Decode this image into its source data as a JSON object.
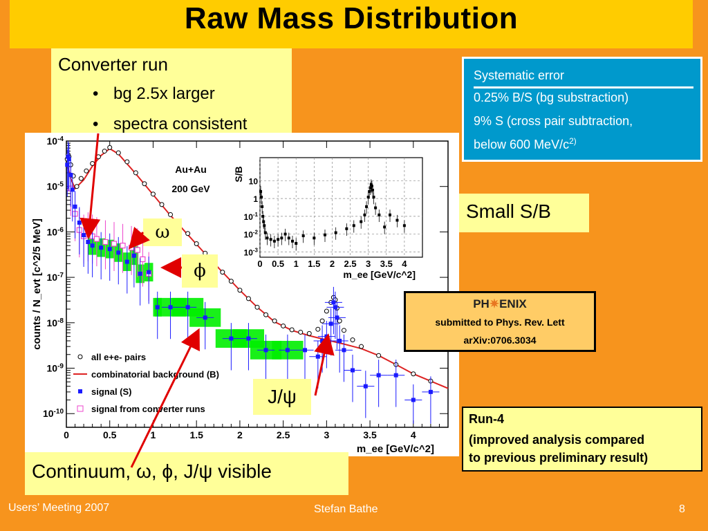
{
  "slide": {
    "title": "Raw Mass Distribution",
    "converter": {
      "title": "Converter run",
      "bullets": [
        "bg 2.5x larger",
        "spectra consistent"
      ]
    },
    "systematic": {
      "heading": "Systematic error",
      "line1": "0.25% B/S (bg substraction)",
      "line2": "9% S (cross pair subtraction,",
      "line3": "below 600 MeV/c",
      "line3_sup": "2)"
    },
    "small_sb": "Small S/B",
    "omega_label": "ω",
    "phi_label": "ϕ",
    "jpsi_label": "J/ψ",
    "phenix": {
      "logo_left": "PH",
      "logo_right": "ENIX",
      "line1": "submitted to Phys. Rev. Lett",
      "line2": "arXiv:0706.3034"
    },
    "run4": {
      "line1": "Run-4",
      "line2": "(improved analysis compared",
      "line3": "to previous preliminary result)"
    },
    "continuum": "Continuum, ω, ϕ, J/ψ visible",
    "footer": {
      "left": "Users’ Meeting 2007",
      "center": "Stefan Bathe",
      "page": "8"
    },
    "colors": {
      "background": "#f7941d",
      "title_bar": "#ffcc00",
      "box": "#ffff99",
      "sys_box": "#0099cc",
      "arrow": "#e00000",
      "signal": "#1a1aff",
      "bg_curve": "#dd2222",
      "sys_band": "#00ee00",
      "converter": "#ee44cc"
    }
  },
  "chart_data": [
    {
      "type": "scatter",
      "log_y": true,
      "xlabel": "m_ee [GeV/c^2]",
      "ylabel": "counts / N_evt [c^2/5 MeV]",
      "xlim": [
        0,
        4.4
      ],
      "ylim": [
        5e-11,
        0.0001
      ],
      "x_ticks": [
        "0",
        "0.5",
        "1",
        "1.5",
        "2",
        "2.5",
        "3",
        "3.5",
        "4"
      ],
      "y_ticks": [
        "10^-10",
        "10^-9",
        "10^-8",
        "10^-7",
        "10^-6",
        "10^-5",
        "10^-4"
      ],
      "annotation": [
        "Au+Au",
        "200 GeV"
      ],
      "legend": [
        "all e+e- pairs",
        "combinatorial background (B)",
        "signal (S)",
        "signal from converter runs"
      ],
      "legend_position": "bottom-left",
      "all_pairs": {
        "x": [
          0.01,
          0.02,
          0.03,
          0.05,
          0.08,
          0.12,
          0.17,
          0.23,
          0.3,
          0.37,
          0.44,
          0.5,
          0.6,
          0.7,
          0.8,
          0.9,
          1.0,
          1.1,
          1.2,
          1.3,
          1.4,
          1.5,
          1.6,
          1.7,
          1.8,
          1.9,
          2.0,
          2.1,
          2.2,
          2.3,
          2.4,
          2.5,
          2.6,
          2.7,
          2.8,
          2.9,
          2.95,
          3.0,
          3.05,
          3.08,
          3.1,
          3.12,
          3.15,
          3.2,
          3.3,
          3.4,
          3.6,
          3.8,
          4.0,
          4.2
        ],
        "y": [
          4e-05,
          5e-05,
          4.5e-05,
          3e-05,
          1.7e-05,
          1e-05,
          1.5e-05,
          2.2e-05,
          3.2e-05,
          4.5e-05,
          6e-05,
          7.2e-05,
          5.5e-05,
          3.5e-05,
          2e-05,
          1.15e-05,
          6.8e-06,
          4e-06,
          2.4e-06,
          1.5e-06,
          9.2e-07,
          5.5e-07,
          3.4e-07,
          2.1e-07,
          1.3e-07,
          8.2e-08,
          5.2e-08,
          3.4e-08,
          2.2e-08,
          1.5e-08,
          1.1e-08,
          8.5e-09,
          7e-09,
          6.2e-09,
          5.8e-09,
          7.2e-09,
          1.1e-08,
          1.8e-08,
          2.8e-08,
          3.6e-08,
          3.2e-08,
          2.1e-08,
          1.1e-08,
          6.8e-09,
          4.2e-09,
          3e-09,
          1.9e-09,
          1.2e-09,
          7.5e-10,
          5.2e-10
        ]
      },
      "background": {
        "x": [
          0.01,
          0.05,
          0.1,
          0.2,
          0.3,
          0.4,
          0.5,
          0.6,
          0.8,
          1.0,
          1.2,
          1.4,
          1.6,
          1.8,
          2.0,
          2.2,
          2.4,
          2.6,
          2.8,
          3.0,
          3.2,
          3.4,
          3.6,
          3.8,
          4.0,
          4.2,
          4.4
        ],
        "y": [
          3e-05,
          1.5e-05,
          9e-06,
          1.4e-05,
          2.8e-05,
          4.8e-05,
          6.8e-05,
          5.2e-05,
          1.9e-05,
          6.6e-06,
          2.3e-06,
          8.7e-07,
          3.3e-07,
          1.3e-07,
          5.2e-08,
          2.2e-08,
          1.05e-08,
          6.8e-09,
          5.2e-09,
          4.2e-09,
          3.4e-09,
          2.7e-09,
          1.9e-09,
          1.2e-09,
          7.5e-10,
          5.2e-10,
          3.6e-10
        ]
      },
      "signal": {
        "x": [
          0.01,
          0.02,
          0.03,
          0.05,
          0.07,
          0.1,
          0.15,
          0.2,
          0.25,
          0.3,
          0.4,
          0.5,
          0.6,
          0.7,
          0.78,
          0.85,
          0.95,
          1.05,
          1.2,
          1.4,
          1.6,
          1.9,
          2.1,
          2.3,
          2.55,
          2.75,
          2.9,
          2.95,
          3.0,
          3.05,
          3.08,
          3.1,
          3.12,
          3.15,
          3.2,
          3.3,
          3.45,
          3.6,
          3.8,
          4.0,
          4.2
        ],
        "y": [
          3e-05,
          4.5e-05,
          4e-05,
          1.8e-05,
          8.5e-06,
          3.6e-06,
          1.6e-06,
          8.5e-07,
          6e-07,
          5e-07,
          4.5e-07,
          4.2e-07,
          3.5e-07,
          2.2e-07,
          3e-07,
          1.2e-07,
          1.3e-07,
          2.2e-08,
          2.2e-08,
          2.2e-08,
          1.3e-08,
          4.5e-09,
          4.5e-09,
          2.5e-09,
          2.5e-09,
          2.5e-09,
          1.8e-09,
          4e-09,
          5e-09,
          9.5e-09,
          2.8e-08,
          2.2e-08,
          1.3e-08,
          4e-09,
          2.5e-09,
          9e-10,
          4e-10,
          7e-10,
          7e-10,
          2e-10,
          3e-10
        ]
      },
      "converter": {
        "x": [
          0.05,
          0.1,
          0.15,
          0.2,
          0.25,
          0.3,
          0.35,
          0.45,
          0.55,
          0.65,
          0.75,
          0.82,
          0.88,
          0.95
        ],
        "y": [
          9e-06,
          2.5e-06,
          1.1e-06,
          8e-07,
          9e-07,
          8e-07,
          7e-07,
          6e-07,
          5.5e-07,
          5e-07,
          4.5e-07,
          4e-07,
          2.5e-07,
          1.2e-07
        ]
      }
    },
    {
      "type": "scatter",
      "log_y": true,
      "xlabel": "m_ee [GeV/c^2]",
      "ylabel": "S/B",
      "xlim": [
        0,
        4.5
      ],
      "ylim": [
        0.0005,
        200
      ],
      "x_ticks": [
        "0",
        "0.5",
        "1",
        "1.5",
        "2",
        "2.5",
        "3",
        "3.5",
        "4"
      ],
      "y_ticks": [
        "10^-3",
        "10^-2",
        "10^-1",
        "1",
        "10"
      ],
      "points": {
        "x": [
          0.02,
          0.04,
          0.06,
          0.08,
          0.1,
          0.12,
          0.15,
          0.2,
          0.3,
          0.4,
          0.5,
          0.6,
          0.7,
          0.8,
          0.9,
          1.0,
          1.2,
          1.5,
          1.8,
          2.1,
          2.4,
          2.6,
          2.8,
          2.9,
          2.95,
          3.0,
          3.03,
          3.06,
          3.08,
          3.1,
          3.12,
          3.15,
          3.2,
          3.3,
          3.45,
          3.6,
          3.8,
          4.0
        ],
        "y": [
          2.5,
          1.2,
          0.35,
          0.1,
          0.05,
          0.03,
          0.012,
          0.006,
          0.005,
          0.004,
          0.005,
          0.006,
          0.01,
          0.006,
          0.004,
          0.003,
          0.008,
          0.006,
          0.009,
          0.012,
          0.02,
          0.03,
          0.05,
          0.12,
          0.35,
          1.2,
          2.5,
          4,
          6,
          5,
          3,
          1.2,
          0.3,
          0.12,
          0.025,
          0.12,
          0.06,
          0.03
        ]
      }
    }
  ]
}
